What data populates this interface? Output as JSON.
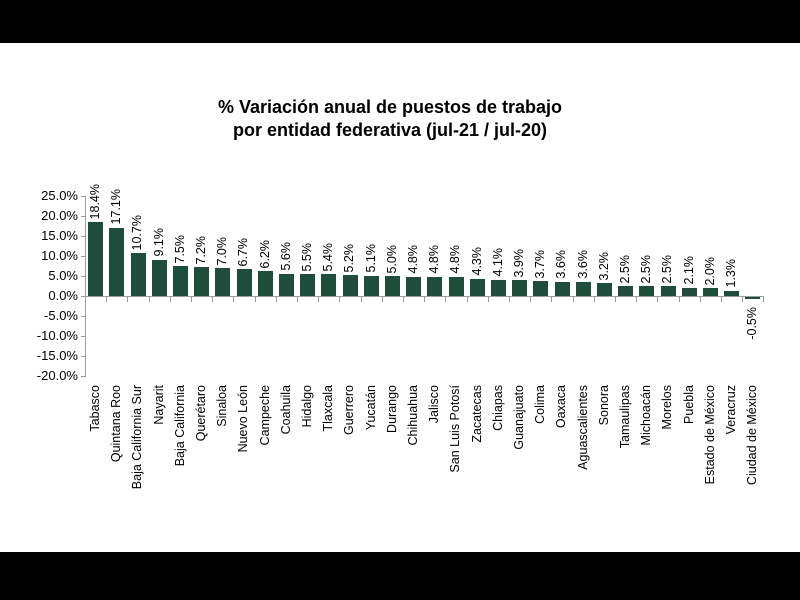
{
  "colors": {
    "bar": "#1e4d3b",
    "axis": "#9c9c9c",
    "background": "#ffffff",
    "letterbox": "#000000",
    "text": "#000000"
  },
  "chart": {
    "title_line1": "% Variación anual de puestos de trabajo",
    "title_line2": "por entidad federativa (jul-21 / jul-20)"
  },
  "chart_data": {
    "type": "bar",
    "title": "% Variación anual de puestos de trabajo por entidad federativa (jul-21 / jul-20)",
    "xlabel": "",
    "ylabel": "",
    "grid": false,
    "legend": false,
    "ylim": [
      -20,
      25
    ],
    "y_step": 5,
    "y_ticks": [
      "25.0%",
      "20.0%",
      "15.0%",
      "10.0%",
      "5.0%",
      "0.0%",
      "-5.0%",
      "-10.0%",
      "-15.0%",
      "-20.0%"
    ],
    "categories": [
      "Tabasco",
      "Quintana Roo",
      "Baja California Sur",
      "Nayarit",
      "Baja California",
      "Querétaro",
      "Sinaloa",
      "Nuevo León",
      "Campeche",
      "Coahuila",
      "Hidalgo",
      "Tlaxcala",
      "Guerrero",
      "Yucatán",
      "Durango",
      "Chihuahua",
      "Jalisco",
      "San Luis Potosí",
      "Zacatecas",
      "Chiapas",
      "Guanajuato",
      "Colima",
      "Oaxaca",
      "Aguascalientes",
      "Sonora",
      "Tamaulipas",
      "Michoacán",
      "Morelos",
      "Puebla",
      "Estado de México",
      "Veracruz",
      "Ciudad de México"
    ],
    "values": [
      18.4,
      17.1,
      10.7,
      9.1,
      7.5,
      7.2,
      7.0,
      6.7,
      6.2,
      5.6,
      5.5,
      5.4,
      5.2,
      5.1,
      5.0,
      4.8,
      4.8,
      4.8,
      4.3,
      4.1,
      3.9,
      3.7,
      3.6,
      3.6,
      3.2,
      2.5,
      2.5,
      2.5,
      2.1,
      2.0,
      1.3,
      -0.5
    ],
    "data_labels": [
      "18.4%",
      "17.1%",
      "10.7%",
      "9.1%",
      "7.5%",
      "7.2%",
      "7.0%",
      "6.7%",
      "6.2%",
      "5.6%",
      "5.5%",
      "5.4%",
      "5.2%",
      "5.1%",
      "5.0%",
      "4.8%",
      "4.8%",
      "4.8%",
      "4.3%",
      "4.1%",
      "3.9%",
      "3.7%",
      "3.6%",
      "3.6%",
      "3.2%",
      "2.5%",
      "2.5%",
      "2.5%",
      "2.1%",
      "2.0%",
      "1.3%",
      "-0.5%"
    ]
  }
}
